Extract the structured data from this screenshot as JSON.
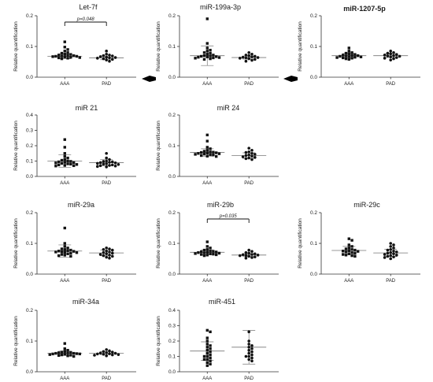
{
  "figure_note_arrows": [
    "left-arrow-marker",
    "left-arrow-marker"
  ],
  "chart_data": [
    {
      "type": "scatter",
      "title": "Let-7f",
      "ylabel": "Relative quantification",
      "categories": [
        "AAA",
        "PAD"
      ],
      "ylim": [
        0,
        0.2
      ],
      "yticks": [
        "0.0",
        "0.1",
        "0.2"
      ],
      "significance": {
        "label": "p=0.048"
      },
      "series": [
        {
          "values": [
            0.115,
            0.098,
            0.09,
            0.085,
            0.08,
            0.078,
            0.075,
            0.074,
            0.072,
            0.071,
            0.07,
            0.069,
            0.068,
            0.068,
            0.067,
            0.066,
            0.065,
            0.064,
            0.063,
            0.062,
            0.06
          ],
          "mean": 0.068,
          "sd": 0.008
        },
        {
          "values": [
            0.085,
            0.075,
            0.072,
            0.07,
            0.069,
            0.067,
            0.065,
            0.064,
            0.063,
            0.062,
            0.06,
            0.058,
            0.056,
            0.052
          ],
          "mean": 0.063,
          "sd": 0.006
        }
      ]
    },
    {
      "type": "scatter",
      "title": "miR-199a-3p",
      "ylabel": "Relative quantification",
      "categories": [
        "AAA",
        "PAD"
      ],
      "ylim": [
        0,
        0.2
      ],
      "yticks": [
        "0.0",
        "0.1",
        "0.2"
      ],
      "series": [
        {
          "values": [
            0.19,
            0.11,
            0.095,
            0.088,
            0.085,
            0.08,
            0.078,
            0.075,
            0.072,
            0.07,
            0.069,
            0.068,
            0.067,
            0.066,
            0.065,
            0.064,
            0.063,
            0.062,
            0.06,
            0.058
          ],
          "mean": 0.07,
          "sd": 0.032
        },
        {
          "values": [
            0.08,
            0.075,
            0.072,
            0.07,
            0.068,
            0.066,
            0.065,
            0.064,
            0.063,
            0.062,
            0.06,
            0.058,
            0.055,
            0.052
          ],
          "mean": 0.064,
          "sd": 0.005
        }
      ]
    },
    {
      "type": "scatter",
      "title": "miR-1207-5p",
      "ylabel": "Relative quantification",
      "categories": [
        "AAA",
        "PAD"
      ],
      "ylim": [
        0,
        0.2
      ],
      "yticks": [
        "0.0",
        "0.1",
        "0.2"
      ],
      "series": [
        {
          "values": [
            0.095,
            0.085,
            0.08,
            0.078,
            0.076,
            0.074,
            0.072,
            0.071,
            0.07,
            0.069,
            0.068,
            0.067,
            0.066,
            0.065,
            0.064,
            0.063,
            0.062,
            0.06,
            0.058
          ],
          "mean": 0.07,
          "sd": 0.007
        },
        {
          "values": [
            0.085,
            0.08,
            0.078,
            0.076,
            0.074,
            0.072,
            0.07,
            0.069,
            0.068,
            0.066,
            0.064,
            0.062,
            0.06,
            0.056
          ],
          "mean": 0.07,
          "sd": 0.006
        }
      ]
    },
    {
      "type": "scatter",
      "title": "miR 21",
      "ylabel": "Relative quantification",
      "categories": [
        "AAA",
        "PAD"
      ],
      "ylim": [
        0,
        0.4
      ],
      "yticks": [
        "0.0",
        "0.1",
        "0.2",
        "0.3",
        "0.4"
      ],
      "series": [
        {
          "values": [
            0.24,
            0.19,
            0.15,
            0.13,
            0.12,
            0.11,
            0.105,
            0.1,
            0.098,
            0.095,
            0.092,
            0.09,
            0.088,
            0.085,
            0.082,
            0.08,
            0.078,
            0.075,
            0.072,
            0.07,
            0.068
          ],
          "mean": 0.1,
          "sd": 0.04
        },
        {
          "values": [
            0.15,
            0.12,
            0.11,
            0.1,
            0.098,
            0.095,
            0.092,
            0.09,
            0.088,
            0.085,
            0.082,
            0.08,
            0.078,
            0.075,
            0.072,
            0.07,
            0.068,
            0.065,
            0.062
          ],
          "mean": 0.09,
          "sd": 0.02
        }
      ]
    },
    {
      "type": "scatter",
      "title": "miR 24",
      "ylabel": "Relative quantification",
      "categories": [
        "AAA",
        "PAD"
      ],
      "ylim": [
        0,
        0.2
      ],
      "yticks": [
        "0.0",
        "0.1",
        "0.2"
      ],
      "series": [
        {
          "values": [
            0.135,
            0.115,
            0.095,
            0.09,
            0.085,
            0.082,
            0.08,
            0.079,
            0.078,
            0.077,
            0.076,
            0.075,
            0.074,
            0.073,
            0.072,
            0.071,
            0.07,
            0.068,
            0.066,
            0.065
          ],
          "mean": 0.078,
          "sd": 0.012
        },
        {
          "values": [
            0.092,
            0.085,
            0.08,
            0.078,
            0.075,
            0.072,
            0.07,
            0.068,
            0.066,
            0.064,
            0.062,
            0.06,
            0.058,
            0.055
          ],
          "mean": 0.068,
          "sd": 0.009
        }
      ]
    },
    {
      "type": "scatter",
      "title": "miR-29a",
      "ylabel": "Relative quantification",
      "categories": [
        "AAA",
        "PAD"
      ],
      "ylim": [
        0,
        0.2
      ],
      "yticks": [
        "0.0",
        "0.1",
        "0.2"
      ],
      "series": [
        {
          "values": [
            0.15,
            0.1,
            0.09,
            0.085,
            0.082,
            0.08,
            0.078,
            0.076,
            0.075,
            0.074,
            0.073,
            0.072,
            0.071,
            0.07,
            0.068,
            0.066,
            0.064,
            0.062,
            0.06,
            0.058
          ],
          "mean": 0.075,
          "sd": 0.02
        },
        {
          "values": [
            0.085,
            0.082,
            0.08,
            0.078,
            0.075,
            0.072,
            0.07,
            0.068,
            0.066,
            0.064,
            0.062,
            0.06,
            0.058,
            0.055,
            0.052
          ],
          "mean": 0.069,
          "sd": 0.009
        }
      ]
    },
    {
      "type": "scatter",
      "title": "miR-29b",
      "ylabel": "Relative quantification",
      "categories": [
        "AAA",
        "PAD"
      ],
      "ylim": [
        0,
        0.2
      ],
      "yticks": [
        "0.0",
        "0.1",
        "0.2"
      ],
      "significance": {
        "label": "p=0.035"
      },
      "series": [
        {
          "values": [
            0.105,
            0.09,
            0.085,
            0.08,
            0.078,
            0.075,
            0.074,
            0.073,
            0.072,
            0.071,
            0.07,
            0.069,
            0.068,
            0.067,
            0.066,
            0.065,
            0.064,
            0.063,
            0.062,
            0.06
          ],
          "mean": 0.071,
          "sd": 0.008
        },
        {
          "values": [
            0.078,
            0.074,
            0.07,
            0.068,
            0.066,
            0.064,
            0.063,
            0.062,
            0.061,
            0.06,
            0.058,
            0.056,
            0.054,
            0.052
          ],
          "mean": 0.062,
          "sd": 0.005
        }
      ]
    },
    {
      "type": "scatter",
      "title": "miR-29c",
      "ylabel": "Relative quantification",
      "categories": [
        "AAA",
        "PAD"
      ],
      "ylim": [
        0,
        0.2
      ],
      "yticks": [
        "0.0",
        "0.1",
        "0.2"
      ],
      "series": [
        {
          "values": [
            0.115,
            0.11,
            0.095,
            0.09,
            0.085,
            0.082,
            0.08,
            0.078,
            0.076,
            0.075,
            0.074,
            0.072,
            0.07,
            0.068,
            0.066,
            0.064,
            0.062,
            0.06,
            0.058
          ],
          "mean": 0.077,
          "sd": 0.013
        },
        {
          "values": [
            0.1,
            0.095,
            0.09,
            0.085,
            0.08,
            0.078,
            0.075,
            0.072,
            0.07,
            0.068,
            0.066,
            0.064,
            0.062,
            0.06,
            0.058,
            0.056,
            0.054,
            0.05
          ],
          "mean": 0.069,
          "sd": 0.012
        }
      ]
    },
    {
      "type": "scatter",
      "title": "miR-34a",
      "ylabel": "Relative quantification",
      "categories": [
        "AAA",
        "PAD"
      ],
      "ylim": [
        0,
        0.2
      ],
      "yticks": [
        "0.0",
        "0.1",
        "0.2"
      ],
      "series": [
        {
          "values": [
            0.092,
            0.075,
            0.07,
            0.066,
            0.064,
            0.063,
            0.062,
            0.061,
            0.06,
            0.06,
            0.059,
            0.058,
            0.058,
            0.057,
            0.056,
            0.055,
            0.054,
            0.053,
            0.052,
            0.05
          ],
          "mean": 0.06,
          "sd": 0.007
        },
        {
          "values": [
            0.072,
            0.068,
            0.066,
            0.064,
            0.062,
            0.061,
            0.06,
            0.059,
            0.058,
            0.057,
            0.056,
            0.055,
            0.054,
            0.052
          ],
          "mean": 0.06,
          "sd": 0.005
        }
      ]
    },
    {
      "type": "scatter",
      "title": "miR-451",
      "ylabel": "Relative quantification",
      "categories": [
        "AAA",
        "PAD"
      ],
      "ylim": [
        0,
        0.4
      ],
      "yticks": [
        "0.0",
        "0.1",
        "0.2",
        "0.3",
        "0.4"
      ],
      "series": [
        {
          "values": [
            0.27,
            0.26,
            0.22,
            0.2,
            0.18,
            0.17,
            0.16,
            0.15,
            0.14,
            0.13,
            0.12,
            0.11,
            0.1,
            0.1,
            0.09,
            0.08,
            0.08,
            0.07,
            0.06,
            0.05,
            0.04
          ],
          "mean": 0.135,
          "sd": 0.06
        },
        {
          "values": [
            0.26,
            0.2,
            0.18,
            0.17,
            0.16,
            0.15,
            0.14,
            0.13,
            0.12,
            0.11,
            0.1,
            0.1,
            0.09,
            0.08,
            0.07
          ],
          "mean": 0.16,
          "sd": 0.11
        }
      ]
    }
  ]
}
